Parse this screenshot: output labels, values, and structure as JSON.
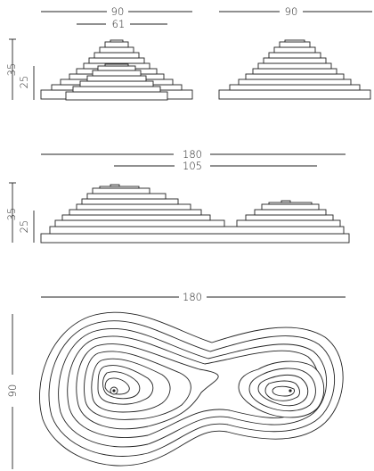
{
  "views": {
    "front_left": {
      "width": "90",
      "inner_width": "61",
      "height": "35",
      "lower_height": "25"
    },
    "front_right": {
      "width": "90"
    },
    "side": {
      "width": "180",
      "inner_width": "105",
      "height": "35",
      "lower_height": "25"
    },
    "plan": {
      "width": "180",
      "depth": "90"
    }
  }
}
